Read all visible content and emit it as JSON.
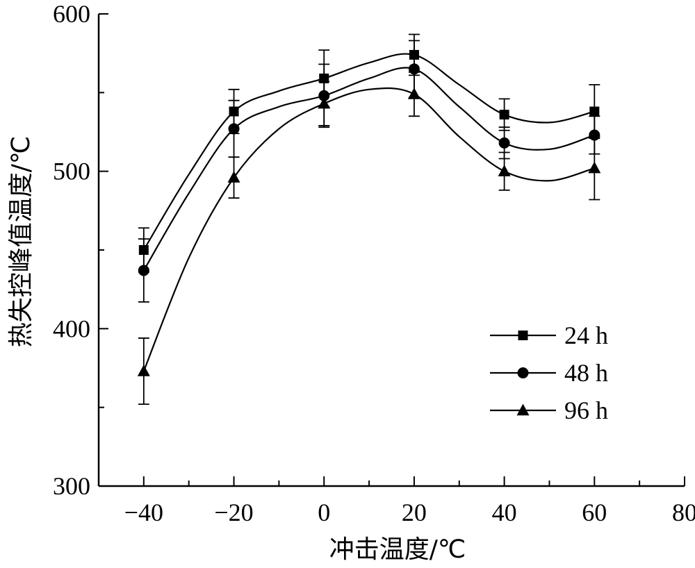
{
  "chart_data": {
    "type": "line",
    "title": "",
    "xlabel": "冲击温度/℃",
    "ylabel": "热失控峰值温度/℃",
    "xlim": [
      -50,
      80
    ],
    "ylim": [
      300,
      600
    ],
    "x_major_ticks": [
      -40,
      -20,
      0,
      20,
      40,
      60,
      80
    ],
    "x_tick_labels": [
      "−40",
      "−20",
      "0",
      "20",
      "40",
      "60",
      "80"
    ],
    "y_major_ticks": [
      300,
      400,
      500,
      600
    ],
    "y_tick_labels": [
      "300",
      "400",
      "500",
      "600"
    ],
    "grid": false,
    "legend_position": "bottom-right",
    "x": [
      -40,
      -20,
      0,
      20,
      40,
      60
    ],
    "series": [
      {
        "name": "24 h",
        "marker": "square",
        "values": [
          450,
          538,
          559,
          574,
          536,
          538
        ],
        "error": [
          14,
          14,
          18,
          13,
          10,
          17
        ],
        "curve": [
          [
            -40,
            450
          ],
          [
            -30,
            498
          ],
          [
            -20,
            538
          ],
          [
            -10,
            551
          ],
          [
            0,
            559
          ],
          [
            10,
            569
          ],
          [
            20,
            574
          ],
          [
            30,
            555
          ],
          [
            40,
            536
          ],
          [
            50,
            531
          ],
          [
            60,
            538
          ]
        ]
      },
      {
        "name": "48 h",
        "marker": "circle",
        "values": [
          437,
          527,
          548,
          565,
          518,
          523
        ],
        "error": [
          20,
          18,
          20,
          18,
          10,
          12
        ],
        "curve": [
          [
            -40,
            437
          ],
          [
            -30,
            486
          ],
          [
            -20,
            527
          ],
          [
            -10,
            541
          ],
          [
            0,
            548
          ],
          [
            10,
            559
          ],
          [
            20,
            565
          ],
          [
            30,
            541
          ],
          [
            40,
            518
          ],
          [
            50,
            514
          ],
          [
            60,
            523
          ]
        ]
      },
      {
        "name": "96 h",
        "marker": "triangle",
        "values": [
          373,
          496,
          543,
          549,
          500,
          502
        ],
        "error": [
          21,
          13,
          14,
          14,
          12,
          20
        ],
        "curve": [
          [
            -40,
            373
          ],
          [
            -30,
            445
          ],
          [
            -20,
            496
          ],
          [
            -10,
            527
          ],
          [
            0,
            543
          ],
          [
            10,
            552
          ],
          [
            20,
            549
          ],
          [
            30,
            522
          ],
          [
            40,
            500
          ],
          [
            50,
            494
          ],
          [
            60,
            502
          ]
        ]
      }
    ]
  }
}
